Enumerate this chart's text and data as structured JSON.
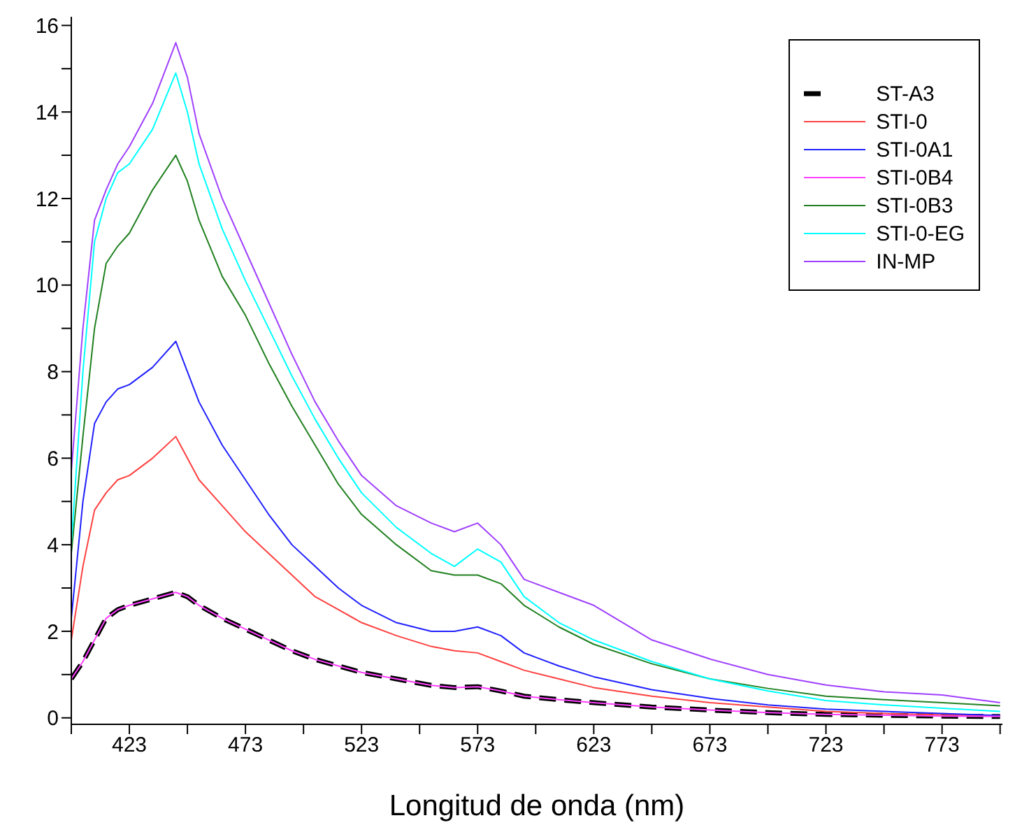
{
  "chart_data": {
    "type": "line",
    "xlabel": "Longitud de onda (nm)",
    "x": [
      398,
      403,
      408,
      413,
      418,
      423,
      433,
      443,
      448,
      453,
      463,
      473,
      483,
      493,
      503,
      513,
      523,
      538,
      553,
      563,
      573,
      583,
      593,
      608,
      623,
      648,
      673,
      698,
      723,
      748,
      773,
      798
    ],
    "xlim": [
      398,
      799
    ],
    "ylim": [
      -0.15,
      16.2
    ],
    "xticks": [
      {
        "value": 398,
        "label": null
      },
      423,
      {
        "value": 448,
        "label": null
      },
      473,
      {
        "value": 498,
        "label": null
      },
      523,
      {
        "value": 548,
        "label": null
      },
      573,
      {
        "value": 598,
        "label": null
      },
      623,
      {
        "value": 648,
        "label": null
      },
      673,
      {
        "value": 698,
        "label": null
      },
      723,
      {
        "value": 748,
        "label": null
      },
      773,
      {
        "value": 798,
        "label": null
      }
    ],
    "yticks": [
      0,
      {
        "value": 1,
        "label": null
      },
      2,
      {
        "value": 3,
        "label": null
      },
      4,
      {
        "value": 5,
        "label": null
      },
      6,
      {
        "value": 7,
        "label": null
      },
      8,
      {
        "value": 9,
        "label": null
      },
      10,
      {
        "value": 11,
        "label": null
      },
      12,
      {
        "value": 13,
        "label": null
      },
      14,
      {
        "value": 15,
        "label": null
      },
      16
    ],
    "legend": "top right",
    "series": [
      {
        "name": "ST-A3",
        "color": "#000000",
        "line_style": "dashed",
        "values": [
          0.9,
          1.3,
          1.8,
          2.3,
          2.5,
          2.6,
          2.75,
          2.9,
          2.8,
          2.6,
          2.3,
          2.05,
          1.8,
          1.55,
          1.35,
          1.2,
          1.05,
          0.9,
          0.75,
          0.7,
          0.72,
          0.62,
          0.5,
          0.42,
          0.35,
          0.25,
          0.18,
          0.12,
          0.08,
          0.06,
          0.04,
          0.03
        ]
      },
      {
        "name": "STI-0",
        "color": "#ff4040",
        "line_style": "solid",
        "values": [
          1.8,
          3.5,
          4.8,
          5.2,
          5.5,
          5.6,
          6.0,
          6.5,
          6.0,
          5.5,
          4.9,
          4.3,
          3.8,
          3.3,
          2.8,
          2.5,
          2.2,
          1.9,
          1.65,
          1.55,
          1.5,
          1.3,
          1.1,
          0.9,
          0.7,
          0.5,
          0.35,
          0.25,
          0.15,
          0.1,
          0.07,
          0.05
        ]
      },
      {
        "name": "STI-0A1",
        "color": "#2020ff",
        "line_style": "solid",
        "values": [
          2.3,
          5.0,
          6.8,
          7.3,
          7.6,
          7.7,
          8.1,
          8.7,
          8.0,
          7.3,
          6.3,
          5.5,
          4.7,
          4.0,
          3.5,
          3.0,
          2.6,
          2.2,
          2.0,
          2.0,
          2.1,
          1.9,
          1.5,
          1.2,
          0.95,
          0.65,
          0.45,
          0.3,
          0.2,
          0.15,
          0.1,
          0.05
        ]
      },
      {
        "name": "STI-0B4",
        "color": "#ff40ff",
        "line_style": "solid",
        "values": [
          0.9,
          1.3,
          1.8,
          2.3,
          2.5,
          2.6,
          2.75,
          2.9,
          2.8,
          2.6,
          2.3,
          2.05,
          1.8,
          1.55,
          1.35,
          1.2,
          1.05,
          0.9,
          0.75,
          0.7,
          0.72,
          0.62,
          0.5,
          0.42,
          0.35,
          0.25,
          0.18,
          0.12,
          0.08,
          0.06,
          0.04,
          0.03
        ]
      },
      {
        "name": "STI-0B3",
        "color": "#208020",
        "line_style": "solid",
        "values": [
          3.8,
          6.5,
          9.0,
          10.5,
          10.9,
          11.2,
          12.2,
          13.0,
          12.4,
          11.5,
          10.2,
          9.3,
          8.2,
          7.2,
          6.3,
          5.4,
          4.7,
          4.0,
          3.4,
          3.3,
          3.3,
          3.1,
          2.6,
          2.1,
          1.7,
          1.25,
          0.9,
          0.68,
          0.5,
          0.42,
          0.35,
          0.28
        ]
      },
      {
        "name": "STI-0-EG",
        "color": "#00ffff",
        "line_style": "solid",
        "values": [
          4.0,
          8.0,
          11.0,
          12.0,
          12.6,
          12.8,
          13.6,
          14.9,
          14.0,
          12.8,
          11.3,
          10.1,
          9.0,
          7.9,
          6.9,
          6.0,
          5.2,
          4.4,
          3.8,
          3.5,
          3.9,
          3.6,
          2.8,
          2.2,
          1.8,
          1.3,
          0.9,
          0.62,
          0.4,
          0.3,
          0.22,
          0.15
        ]
      },
      {
        "name": "IN-MP",
        "color": "#a040ff",
        "line_style": "solid",
        "values": [
          5.7,
          9.0,
          11.5,
          12.2,
          12.8,
          13.2,
          14.2,
          15.6,
          14.8,
          13.5,
          12.0,
          10.8,
          9.6,
          8.4,
          7.3,
          6.4,
          5.6,
          4.9,
          4.5,
          4.3,
          4.5,
          4.0,
          3.2,
          2.9,
          2.6,
          1.8,
          1.36,
          1.0,
          0.76,
          0.6,
          0.53,
          0.35
        ]
      }
    ]
  }
}
